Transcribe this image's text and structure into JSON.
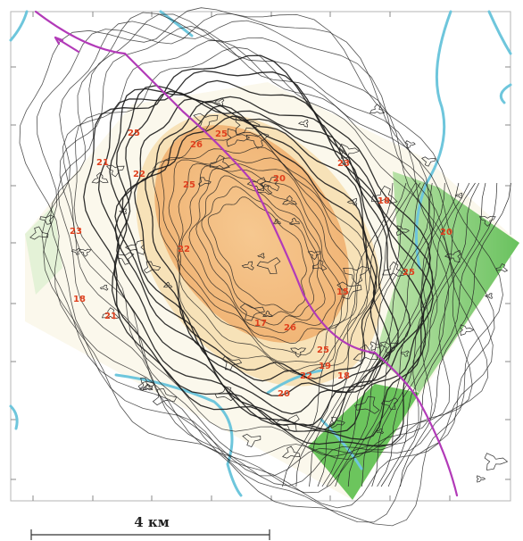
{
  "scale_bar": {
    "label": "4 км"
  },
  "colors": {
    "river": "#6ec6dc",
    "road": "#b23ab8",
    "contour": "#1a1a1a",
    "anomaly_high": "#f2b775",
    "anomaly_mid": "#f7e2b8",
    "anomaly_low": "#5cbf4e",
    "label": "#e0401e"
  },
  "labels": [
    "25",
    "21",
    "22",
    "26",
    "25",
    "25",
    "20",
    "23",
    "18",
    "20",
    "23",
    "22",
    "25",
    "15",
    "18",
    "21",
    "17",
    "26",
    "25",
    "19",
    "22",
    "20",
    "18"
  ]
}
